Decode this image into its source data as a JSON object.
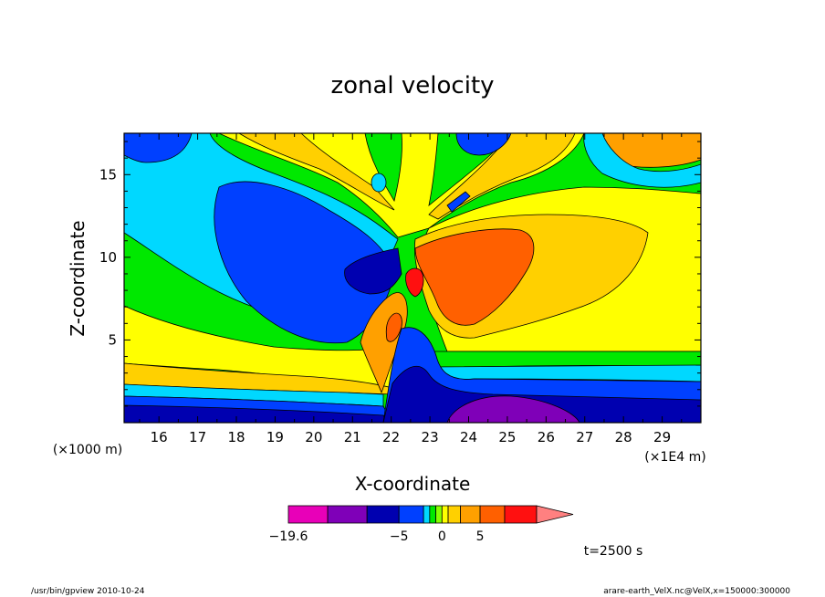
{
  "chart_data": {
    "type": "heatmap",
    "title": "zonal velocity",
    "xlabel": "X-coordinate",
    "ylabel": "Z-coordinate",
    "x_unit_label": "(×1E4 m)",
    "y_unit_label": "(×1000 m)",
    "x_ticks": [
      "16",
      "17",
      "18",
      "19",
      "20",
      "21",
      "22",
      "23",
      "24",
      "25",
      "26",
      "27",
      "28",
      "29"
    ],
    "y_ticks": [
      "5",
      "10",
      "15"
    ],
    "xlim": [
      15.1,
      30.0
    ],
    "ylim": [
      0.0,
      17.5
    ],
    "colorbar": {
      "levels": [
        -19.6,
        -15,
        -10,
        -5,
        -3,
        -2,
        -1,
        0,
        1,
        2,
        5,
        10,
        15,
        20
      ],
      "labels": [
        "−19.6",
        "−5",
        "0",
        "5"
      ],
      "colors": [
        "#e800b8",
        "#7f00b8",
        "#0000b0",
        "#0040ff",
        "#00d8ff",
        "#00e800",
        "#88ff00",
        "#ffff00",
        "#ffd000",
        "#ffa000",
        "#ff6000",
        "#ff1010",
        "#ff8080"
      ]
    },
    "time_label": "t=2500 s",
    "footer_left": "/usr/bin/gpview   2010-10-24",
    "footer_right": "arare-earth_VelX.nc@VelX,x=150000:300000",
    "regions": [
      {
        "name": "upper-left cyan",
        "level": -2
      },
      {
        "name": "upper-left blue jet",
        "level": -5
      },
      {
        "name": "core dark blue",
        "level": -10
      },
      {
        "name": "right orange jet",
        "level": 10
      },
      {
        "name": "central red core",
        "level": 15
      },
      {
        "name": "lower purple",
        "level": -15
      },
      {
        "name": "near-surface dark blue",
        "level": -10
      }
    ]
  }
}
